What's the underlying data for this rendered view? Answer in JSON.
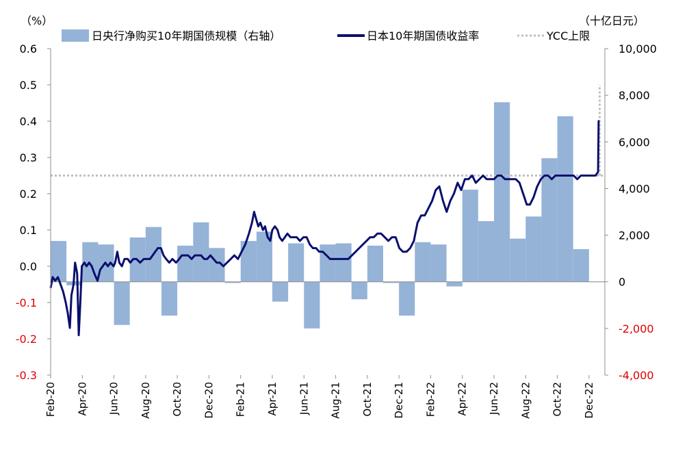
{
  "chart_data": {
    "type": "bar+line",
    "left_unit": "（%）",
    "right_unit": "（十亿日元）",
    "left_axis": {
      "min": -0.3,
      "max": 0.6,
      "ticks": [
        "0.6",
        "0.5",
        "0.4",
        "0.3",
        "0.2",
        "0.1",
        "0.0",
        "-0.1",
        "-0.2",
        "-0.3"
      ]
    },
    "right_axis": {
      "min": -4000,
      "max": 10000,
      "ticks": [
        "10,000",
        "8,000",
        "6,000",
        "4,000",
        "2,000",
        "0",
        "-2,000",
        "-4,000"
      ]
    },
    "x_labels": [
      "Feb-20",
      "Apr-20",
      "Jun-20",
      "Aug-20",
      "Oct-20",
      "Dec-20",
      "Feb-21",
      "Apr-21",
      "Jun-21",
      "Aug-21",
      "Oct-21",
      "Dec-21",
      "Feb-22",
      "Apr-22",
      "Jun-22",
      "Aug-22",
      "Oct-22",
      "Dec-22"
    ],
    "legend": {
      "bars": "日央行净购买10年期国债规模（右轴）",
      "line": "日本10年期国债收益率",
      "ycc": "YCC上限"
    },
    "ycc_cap": 0.25,
    "bar_months": [
      "Feb-20",
      "Mar-20",
      "Apr-20",
      "May-20",
      "Jun-20",
      "Jul-20",
      "Aug-20",
      "Sep-20",
      "Oct-20",
      "Nov-20",
      "Dec-20",
      "Jan-21",
      "Feb-21",
      "Mar-21",
      "Apr-21",
      "May-21",
      "Jun-21",
      "Jul-21",
      "Aug-21",
      "Sep-21",
      "Oct-21",
      "Nov-21",
      "Dec-21",
      "Jan-22",
      "Feb-22",
      "Mar-22",
      "Apr-22",
      "May-22",
      "Jun-22",
      "Jul-22",
      "Aug-22",
      "Sep-22",
      "Oct-22",
      "Nov-22",
      "Dec-22"
    ],
    "bars": [
      1750,
      -150,
      1700,
      1600,
      -1850,
      1900,
      2350,
      -1450,
      1550,
      2550,
      1450,
      -50,
      1750,
      2150,
      -850,
      1650,
      -2000,
      1600,
      1650,
      -750,
      1550,
      -50,
      -1450,
      1700,
      1600,
      -200,
      3950,
      2600,
      7700,
      1850,
      2800,
      5300,
      7100,
      1400,
      0
    ],
    "yield_points": [
      [
        "2020-02-01",
        -0.06
      ],
      [
        "2020-02-05",
        -0.03
      ],
      [
        "2020-02-10",
        -0.04
      ],
      [
        "2020-02-15",
        -0.03
      ],
      [
        "2020-02-20",
        -0.05
      ],
      [
        "2020-02-25",
        -0.07
      ],
      [
        "2020-03-01",
        -0.1
      ],
      [
        "2020-03-05",
        -0.13
      ],
      [
        "2020-03-09",
        -0.17
      ],
      [
        "2020-03-12",
        -0.08
      ],
      [
        "2020-03-16",
        -0.05
      ],
      [
        "2020-03-19",
        0.01
      ],
      [
        "2020-03-23",
        -0.02
      ],
      [
        "2020-03-26",
        -0.19
      ],
      [
        "2020-03-29",
        -0.1
      ],
      [
        "2020-04-01",
        0.0
      ],
      [
        "2020-04-06",
        0.01
      ],
      [
        "2020-04-10",
        0.0
      ],
      [
        "2020-04-15",
        0.01
      ],
      [
        "2020-04-20",
        0.0
      ],
      [
        "2020-04-25",
        -0.02
      ],
      [
        "2020-05-01",
        -0.04
      ],
      [
        "2020-05-06",
        -0.01
      ],
      [
        "2020-05-11",
        0.0
      ],
      [
        "2020-05-16",
        0.01
      ],
      [
        "2020-05-21",
        0.0
      ],
      [
        "2020-05-26",
        0.01
      ],
      [
        "2020-06-01",
        0.0
      ],
      [
        "2020-06-04",
        0.01
      ],
      [
        "2020-06-08",
        0.04
      ],
      [
        "2020-06-12",
        0.01
      ],
      [
        "2020-06-17",
        0.0
      ],
      [
        "2020-06-22",
        0.02
      ],
      [
        "2020-06-28",
        0.02
      ],
      [
        "2020-07-03",
        0.01
      ],
      [
        "2020-07-09",
        0.02
      ],
      [
        "2020-07-15",
        0.02
      ],
      [
        "2020-07-22",
        0.01
      ],
      [
        "2020-07-29",
        0.02
      ],
      [
        "2020-08-05",
        0.02
      ],
      [
        "2020-08-10",
        0.02
      ],
      [
        "2020-08-15",
        0.03
      ],
      [
        "2020-08-20",
        0.04
      ],
      [
        "2020-08-25",
        0.05
      ],
      [
        "2020-08-31",
        0.05
      ],
      [
        "2020-09-05",
        0.03
      ],
      [
        "2020-09-10",
        0.02
      ],
      [
        "2020-09-16",
        0.01
      ],
      [
        "2020-09-22",
        0.02
      ],
      [
        "2020-09-29",
        0.01
      ],
      [
        "2020-10-05",
        0.02
      ],
      [
        "2020-10-10",
        0.03
      ],
      [
        "2020-10-16",
        0.03
      ],
      [
        "2020-10-22",
        0.03
      ],
      [
        "2020-10-29",
        0.02
      ],
      [
        "2020-11-04",
        0.03
      ],
      [
        "2020-11-10",
        0.03
      ],
      [
        "2020-11-16",
        0.03
      ],
      [
        "2020-11-22",
        0.02
      ],
      [
        "2020-11-28",
        0.02
      ],
      [
        "2020-12-04",
        0.03
      ],
      [
        "2020-12-10",
        0.02
      ],
      [
        "2020-12-16",
        0.01
      ],
      [
        "2020-12-22",
        0.01
      ],
      [
        "2020-12-29",
        0.0
      ],
      [
        "2021-01-05",
        0.01
      ],
      [
        "2021-01-12",
        0.02
      ],
      [
        "2021-01-19",
        0.03
      ],
      [
        "2021-01-26",
        0.02
      ],
      [
        "2021-02-02",
        0.04
      ],
      [
        "2021-02-09",
        0.06
      ],
      [
        "2021-02-16",
        0.09
      ],
      [
        "2021-02-22",
        0.12
      ],
      [
        "2021-02-26",
        0.15
      ],
      [
        "2021-03-02",
        0.13
      ],
      [
        "2021-03-06",
        0.11
      ],
      [
        "2021-03-10",
        0.12
      ],
      [
        "2021-03-15",
        0.1
      ],
      [
        "2021-03-19",
        0.11
      ],
      [
        "2021-03-24",
        0.08
      ],
      [
        "2021-03-29",
        0.07
      ],
      [
        "2021-04-02",
        0.1
      ],
      [
        "2021-04-07",
        0.11
      ],
      [
        "2021-04-12",
        0.1
      ],
      [
        "2021-04-16",
        0.08
      ],
      [
        "2021-04-21",
        0.07
      ],
      [
        "2021-04-26",
        0.08
      ],
      [
        "2021-05-01",
        0.09
      ],
      [
        "2021-05-07",
        0.08
      ],
      [
        "2021-05-13",
        0.08
      ],
      [
        "2021-05-19",
        0.08
      ],
      [
        "2021-05-25",
        0.07
      ],
      [
        "2021-06-01",
        0.08
      ],
      [
        "2021-06-07",
        0.08
      ],
      [
        "2021-06-13",
        0.06
      ],
      [
        "2021-06-19",
        0.05
      ],
      [
        "2021-06-25",
        0.05
      ],
      [
        "2021-07-01",
        0.04
      ],
      [
        "2021-07-08",
        0.04
      ],
      [
        "2021-07-15",
        0.03
      ],
      [
        "2021-07-22",
        0.02
      ],
      [
        "2021-07-29",
        0.02
      ],
      [
        "2021-08-05",
        0.02
      ],
      [
        "2021-08-12",
        0.02
      ],
      [
        "2021-08-19",
        0.02
      ],
      [
        "2021-08-26",
        0.02
      ],
      [
        "2021-09-02",
        0.03
      ],
      [
        "2021-09-09",
        0.04
      ],
      [
        "2021-09-16",
        0.05
      ],
      [
        "2021-09-23",
        0.06
      ],
      [
        "2021-09-30",
        0.07
      ],
      [
        "2021-10-07",
        0.08
      ],
      [
        "2021-10-14",
        0.08
      ],
      [
        "2021-10-21",
        0.09
      ],
      [
        "2021-10-28",
        0.09
      ],
      [
        "2021-11-04",
        0.08
      ],
      [
        "2021-11-11",
        0.07
      ],
      [
        "2021-11-18",
        0.08
      ],
      [
        "2021-11-25",
        0.08
      ],
      [
        "2021-12-02",
        0.05
      ],
      [
        "2021-12-09",
        0.04
      ],
      [
        "2021-12-16",
        0.04
      ],
      [
        "2021-12-23",
        0.05
      ],
      [
        "2021-12-30",
        0.07
      ],
      [
        "2022-01-06",
        0.12
      ],
      [
        "2022-01-13",
        0.14
      ],
      [
        "2022-01-20",
        0.14
      ],
      [
        "2022-01-27",
        0.16
      ],
      [
        "2022-02-03",
        0.18
      ],
      [
        "2022-02-10",
        0.21
      ],
      [
        "2022-02-17",
        0.22
      ],
      [
        "2022-02-24",
        0.18
      ],
      [
        "2022-03-03",
        0.15
      ],
      [
        "2022-03-10",
        0.18
      ],
      [
        "2022-03-17",
        0.2
      ],
      [
        "2022-03-24",
        0.23
      ],
      [
        "2022-03-31",
        0.21
      ],
      [
        "2022-04-07",
        0.24
      ],
      [
        "2022-04-14",
        0.24
      ],
      [
        "2022-04-21",
        0.25
      ],
      [
        "2022-04-28",
        0.23
      ],
      [
        "2022-05-05",
        0.24
      ],
      [
        "2022-05-12",
        0.25
      ],
      [
        "2022-05-19",
        0.24
      ],
      [
        "2022-05-26",
        0.24
      ],
      [
        "2022-06-02",
        0.24
      ],
      [
        "2022-06-09",
        0.25
      ],
      [
        "2022-06-16",
        0.25
      ],
      [
        "2022-06-23",
        0.24
      ],
      [
        "2022-06-30",
        0.24
      ],
      [
        "2022-07-07",
        0.24
      ],
      [
        "2022-07-14",
        0.24
      ],
      [
        "2022-07-21",
        0.23
      ],
      [
        "2022-07-28",
        0.2
      ],
      [
        "2022-08-04",
        0.17
      ],
      [
        "2022-08-10",
        0.17
      ],
      [
        "2022-08-17",
        0.19
      ],
      [
        "2022-08-24",
        0.22
      ],
      [
        "2022-08-31",
        0.24
      ],
      [
        "2022-09-07",
        0.25
      ],
      [
        "2022-09-14",
        0.25
      ],
      [
        "2022-09-21",
        0.24
      ],
      [
        "2022-09-28",
        0.25
      ],
      [
        "2022-10-05",
        0.25
      ],
      [
        "2022-10-12",
        0.25
      ],
      [
        "2022-10-19",
        0.25
      ],
      [
        "2022-10-26",
        0.25
      ],
      [
        "2022-11-02",
        0.25
      ],
      [
        "2022-11-09",
        0.24
      ],
      [
        "2022-11-16",
        0.25
      ],
      [
        "2022-11-23",
        0.25
      ],
      [
        "2022-11-30",
        0.25
      ],
      [
        "2022-12-07",
        0.25
      ],
      [
        "2022-12-14",
        0.25
      ],
      [
        "2022-12-19",
        0.26
      ],
      [
        "2022-12-20",
        0.4
      ],
      [
        "2022-12-22",
        0.4
      ]
    ]
  }
}
